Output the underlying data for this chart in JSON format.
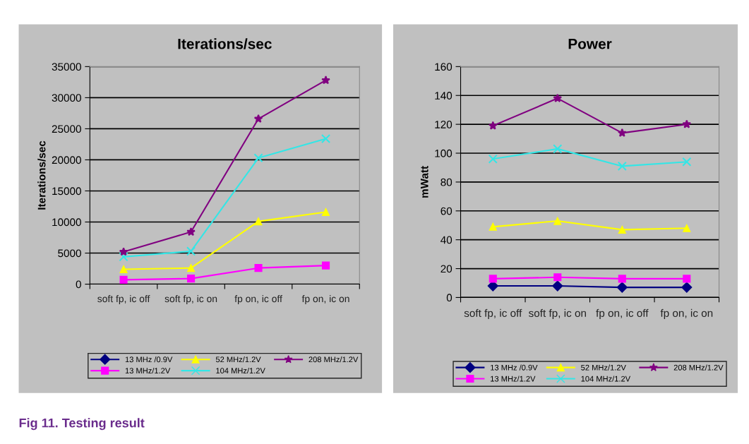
{
  "chart_data": [
    {
      "type": "line",
      "title": "Iterations/sec",
      "ylabel": "Iterations/sec",
      "categories": [
        "soft fp, ic off",
        "soft fp, ic on",
        "fp on, ic off",
        "fp on, ic on"
      ],
      "series": [
        {
          "name": "13 MHz /0.9V",
          "color": "#000080",
          "marker": "diamond",
          "values": [
            null,
            null,
            null,
            null
          ]
        },
        {
          "name": "13 MHz/1.2V",
          "color": "#ff00ff",
          "marker": "square",
          "values": [
            700,
            900,
            2600,
            3000
          ]
        },
        {
          "name": "52 MHz/1.2V",
          "color": "#ffff00",
          "marker": "triangle",
          "values": [
            2400,
            2600,
            10100,
            11600
          ]
        },
        {
          "name": "104 MHz/1.2V",
          "color": "#33e6e6",
          "marker": "cross",
          "values": [
            4400,
            5300,
            20300,
            23400
          ]
        },
        {
          "name": "208 MHz/1.2V",
          "color": "#800080",
          "marker": "star",
          "values": [
            5200,
            8400,
            26600,
            32800
          ]
        }
      ],
      "ylim": [
        0,
        35000
      ],
      "yticks": [
        0,
        5000,
        10000,
        15000,
        20000,
        25000,
        30000,
        35000
      ],
      "grid": "y",
      "legend": "bottom",
      "annotations": [
        "Fig 11. Testing result"
      ]
    },
    {
      "type": "line",
      "title": "Power",
      "ylabel": "mWatt",
      "categories": [
        "soft fp, ic off",
        "soft fp, ic on",
        "fp on, ic off",
        "fp on, ic on"
      ],
      "series": [
        {
          "name": "13 MHz /0.9V",
          "color": "#000080",
          "marker": "diamond",
          "values": [
            8,
            8,
            7,
            7
          ]
        },
        {
          "name": "13 MHz/1.2V",
          "color": "#ff00ff",
          "marker": "square",
          "values": [
            13,
            14,
            13,
            13
          ]
        },
        {
          "name": "52 MHz/1.2V",
          "color": "#ffff00",
          "marker": "triangle",
          "values": [
            49,
            53,
            47,
            48
          ]
        },
        {
          "name": "104 MHz/1.2V",
          "color": "#33e6e6",
          "marker": "cross",
          "values": [
            96,
            103,
            91,
            94
          ]
        },
        {
          "name": "208 MHz/1.2V",
          "color": "#800080",
          "marker": "star",
          "values": [
            119,
            138,
            114,
            120
          ]
        }
      ],
      "ylim": [
        0,
        160
      ],
      "yticks": [
        0,
        20,
        40,
        60,
        80,
        100,
        120,
        140,
        160
      ],
      "grid": "y",
      "legend": "bottom"
    }
  ]
}
